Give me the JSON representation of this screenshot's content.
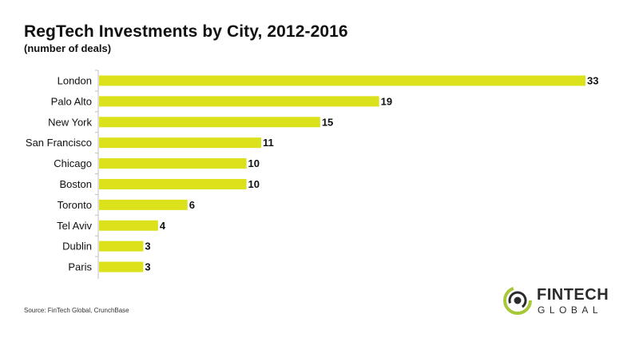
{
  "title": "RegTech Investments by City, 2012-2016",
  "subtitle": "(number of deals)",
  "source": "Source: FinTech Global, CrunchBase",
  "logo": {
    "line1": "FINTECH",
    "line2": "GLOBAL",
    "icon": "fintech-global-logo-icon"
  },
  "colors": {
    "bar": "#dbe11b",
    "axis": "#bfbfbf",
    "text": "#111111",
    "logo_green": "#a6c93a"
  },
  "chart_data": {
    "type": "bar",
    "orientation": "horizontal",
    "categories": [
      "London",
      "Palo Alto",
      "New York",
      "San Francisco",
      "Chicago",
      "Boston",
      "Toronto",
      "Tel Aviv",
      "Dublin",
      "Paris"
    ],
    "values": [
      33,
      19,
      15,
      11,
      10,
      10,
      6,
      4,
      3,
      3
    ],
    "title": "RegTech Investments by City, 2012-2016",
    "subtitle": "(number of deals)",
    "xlim": [
      0,
      33
    ],
    "grid": false,
    "data_labels": true
  }
}
